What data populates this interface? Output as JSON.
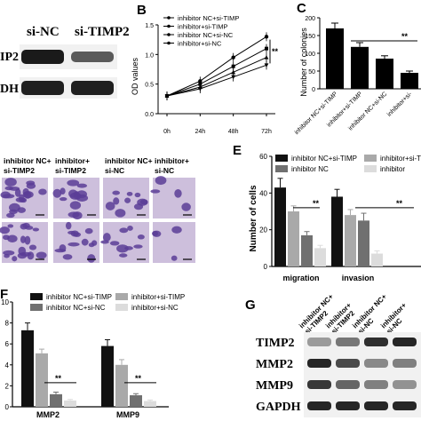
{
  "panels": {
    "a": {
      "letter": "",
      "lanes": [
        "si-NC",
        "si-TIMP2"
      ],
      "rows": [
        "IP2",
        "DH"
      ]
    },
    "b": {
      "letter": "B",
      "ylabel": "OD values",
      "xticks": [
        "0h",
        "24h",
        "48h",
        "72h"
      ],
      "yticks": [
        "0.0",
        "0.5",
        "1.0",
        "1.5"
      ],
      "legend": [
        "inhibitor NC+si-TIMP",
        "inhibitor+si-TIMP",
        "inhibitor NC+si-NC",
        "inhibitor+si-NC"
      ],
      "significance": "**"
    },
    "c": {
      "letter": "C",
      "ylabel": "Number of colonies",
      "yticks": [
        "0",
        "50",
        "100",
        "150",
        "200"
      ],
      "categories": [
        "inhibitor NC+si-TIMP",
        "inhibitor+si-TIMP",
        "inhibitor NC+si-NC",
        "inhibitor+si-"
      ],
      "significance": "**"
    },
    "d": {
      "letter": "",
      "columns": [
        "inhibitor NC+\nsi-TIMP2",
        "inhibitor+\nsi-TIMP2",
        "inhibitor NC+\nsi-NC",
        "inhibitor+\nsi-NC"
      ]
    },
    "e": {
      "letter": "E",
      "ylabel": "Number of cells",
      "yticks": [
        "0",
        "20",
        "40",
        "60"
      ],
      "groups": [
        "migration",
        "invasion"
      ],
      "legend": [
        "inhibitor NC+si-TIMP",
        "inhibitor+si-TIMP",
        "inhibitor NC",
        "inhibitor"
      ],
      "significance": "**"
    },
    "f": {
      "letter": "F",
      "yticks": [
        "0",
        "2",
        "4",
        "6",
        "8",
        "10"
      ],
      "groups": [
        "MMP2",
        "MMP9"
      ],
      "legend": [
        "inhibitor NC+si-TIMP",
        "inhibitor+si-TIMP",
        "inhibitor NC+si-NC",
        "inhibitor+si-NC"
      ],
      "significance": "**"
    },
    "g": {
      "letter": "G",
      "lanes": [
        "inhibitor NC+\nsi-TIMP2",
        "inhibitor+\nsi-TIMP2",
        "inhibitor NC+\nsi-NC",
        "inhibitor+\nsi-NC"
      ],
      "rows": [
        "TIMP2",
        "MMP2",
        "MMP9",
        "GAPDH"
      ]
    }
  },
  "chart_data": [
    {
      "panel": "B",
      "type": "line",
      "x": [
        "0h",
        "24h",
        "48h",
        "72h"
      ],
      "ylabel": "OD values",
      "ylim": [
        0,
        1.5
      ],
      "series": [
        {
          "name": "inhibitor NC+si-TIMP",
          "values": [
            0.3,
            0.55,
            0.95,
            1.3
          ]
        },
        {
          "name": "inhibitor+si-TIMP",
          "values": [
            0.3,
            0.5,
            0.8,
            1.1
          ]
        },
        {
          "name": "inhibitor NC+si-NC",
          "values": [
            0.3,
            0.45,
            0.7,
            0.95
          ]
        },
        {
          "name": "inhibitor+si-NC",
          "values": [
            0.3,
            0.42,
            0.62,
            0.82
          ]
        }
      ]
    },
    {
      "panel": "C",
      "type": "bar",
      "categories": [
        "inhibitor NC+si-TIMP",
        "inhibitor+si-TIMP",
        "inhibitor NC+si-NC",
        "inhibitor+si-"
      ],
      "values": [
        170,
        118,
        85,
        45
      ],
      "errors": [
        15,
        12,
        8,
        5
      ],
      "ylabel": "Number of colonies",
      "ylim": [
        0,
        200
      ]
    },
    {
      "panel": "E",
      "type": "bar",
      "categories": [
        "migration",
        "invasion"
      ],
      "ylabel": "Number of cells",
      "ylim": [
        0,
        60
      ],
      "series": [
        {
          "name": "inhibitor NC+si-TIMP",
          "values": [
            43,
            38
          ],
          "errors": [
            5,
            4
          ]
        },
        {
          "name": "inhibitor+si-TIMP",
          "values": [
            30,
            28
          ],
          "errors": [
            3,
            3
          ]
        },
        {
          "name": "inhibitor NC",
          "values": [
            17,
            25
          ],
          "errors": [
            2,
            4
          ]
        },
        {
          "name": "inhibitor",
          "values": [
            10,
            7
          ],
          "errors": [
            1.5,
            1.5
          ]
        }
      ]
    },
    {
      "panel": "F",
      "type": "bar",
      "categories": [
        "MMP2",
        "MMP9"
      ],
      "ylim": [
        0,
        10
      ],
      "series": [
        {
          "name": "inhibitor NC+si-TIMP",
          "values": [
            7.3,
            5.8
          ],
          "errors": [
            0.7,
            0.6
          ]
        },
        {
          "name": "inhibitor+si-TIMP",
          "values": [
            5.1,
            4.0
          ],
          "errors": [
            0.4,
            0.5
          ]
        },
        {
          "name": "inhibitor NC+si-NC",
          "values": [
            1.2,
            1.1
          ],
          "errors": [
            0.2,
            0.15
          ]
        },
        {
          "name": "inhibitor+si-NC",
          "values": [
            0.6,
            0.55
          ],
          "errors": [
            0.1,
            0.1
          ]
        }
      ]
    }
  ],
  "colors": {
    "bar1": "#111111",
    "bar2": "#a9a9a9",
    "bar3": "#707070",
    "bar4": "#dcdcdc",
    "stain_dark": "#5b3d96",
    "stain_light": "#cdbfdc",
    "panel_bg": "#f1f1f1"
  }
}
